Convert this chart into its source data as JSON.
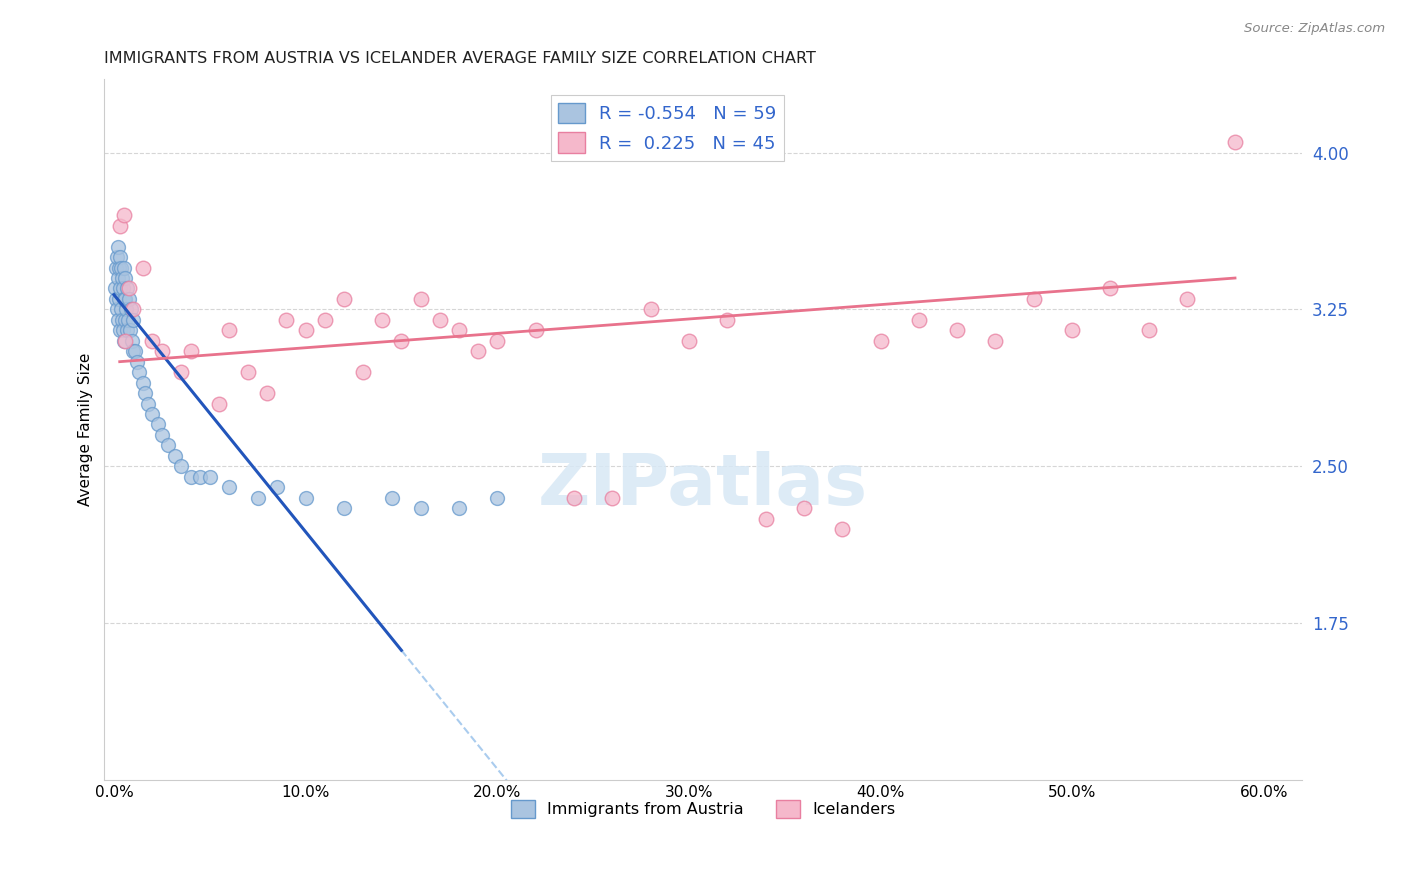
{
  "title": "IMMIGRANTS FROM AUSTRIA VS ICELANDER AVERAGE FAMILY SIZE CORRELATION CHART",
  "source": "Source: ZipAtlas.com",
  "ylabel": "Average Family Size",
  "xlabel_ticks": [
    "0.0%",
    "10.0%",
    "20.0%",
    "30.0%",
    "40.0%",
    "50.0%",
    "60.0%"
  ],
  "xlabel_vals": [
    0,
    10,
    20,
    30,
    40,
    50,
    60
  ],
  "yticks": [
    1.75,
    2.5,
    3.25,
    4.0
  ],
  "ylim": [
    1.0,
    4.35
  ],
  "xlim": [
    -0.5,
    62
  ],
  "r_austria": -0.554,
  "n_austria": 59,
  "r_iceland": 0.225,
  "n_iceland": 45,
  "legend_labels": [
    "Immigrants from Austria",
    "Icelanders"
  ],
  "austria_color": "#aac4e0",
  "austria_edge": "#6699cc",
  "iceland_color": "#f5b8cb",
  "iceland_edge": "#e87fa0",
  "austria_line_color": "#2255bb",
  "austria_line_dash_color": "#aaccee",
  "iceland_line_color": "#e8728c",
  "austria_x": [
    0.05,
    0.1,
    0.1,
    0.15,
    0.15,
    0.2,
    0.2,
    0.2,
    0.25,
    0.25,
    0.3,
    0.3,
    0.3,
    0.35,
    0.35,
    0.4,
    0.4,
    0.45,
    0.45,
    0.5,
    0.5,
    0.5,
    0.55,
    0.6,
    0.6,
    0.65,
    0.7,
    0.7,
    0.75,
    0.8,
    0.85,
    0.9,
    0.95,
    1.0,
    1.0,
    1.1,
    1.2,
    1.3,
    1.5,
    1.6,
    1.8,
    2.0,
    2.3,
    2.5,
    2.8,
    3.2,
    3.5,
    4.0,
    4.5,
    5.0,
    6.0,
    7.5,
    8.5,
    10.0,
    12.0,
    14.5,
    16.0,
    18.0,
    20.0
  ],
  "austria_y": [
    3.35,
    3.45,
    3.3,
    3.5,
    3.25,
    3.55,
    3.4,
    3.2,
    3.45,
    3.3,
    3.5,
    3.35,
    3.15,
    3.45,
    3.25,
    3.4,
    3.2,
    3.35,
    3.15,
    3.45,
    3.3,
    3.1,
    3.3,
    3.4,
    3.2,
    3.25,
    3.35,
    3.15,
    3.2,
    3.3,
    3.15,
    3.25,
    3.1,
    3.2,
    3.05,
    3.05,
    3.0,
    2.95,
    2.9,
    2.85,
    2.8,
    2.75,
    2.7,
    2.65,
    2.6,
    2.55,
    2.5,
    2.45,
    2.45,
    2.45,
    2.4,
    2.35,
    2.4,
    2.35,
    2.3,
    2.35,
    2.3,
    2.3,
    2.35
  ],
  "iceland_x": [
    0.3,
    0.5,
    0.6,
    0.8,
    1.0,
    1.5,
    2.0,
    2.5,
    3.5,
    4.0,
    5.5,
    6.0,
    7.0,
    8.0,
    9.0,
    10.0,
    11.0,
    12.0,
    13.0,
    14.0,
    15.0,
    16.0,
    17.0,
    18.0,
    19.0,
    20.0,
    22.0,
    24.0,
    26.0,
    28.0,
    30.0,
    32.0,
    34.0,
    36.0,
    38.0,
    40.0,
    42.0,
    44.0,
    46.0,
    48.0,
    50.0,
    52.0,
    54.0,
    56.0,
    58.5
  ],
  "iceland_y": [
    3.65,
    3.7,
    3.1,
    3.35,
    3.25,
    3.45,
    3.1,
    3.05,
    2.95,
    3.05,
    2.8,
    3.15,
    2.95,
    2.85,
    3.2,
    3.15,
    3.2,
    3.3,
    2.95,
    3.2,
    3.1,
    3.3,
    3.2,
    3.15,
    3.05,
    3.1,
    3.15,
    2.35,
    2.35,
    3.25,
    3.1,
    3.2,
    2.25,
    2.3,
    2.2,
    3.1,
    3.2,
    3.15,
    3.1,
    3.3,
    3.15,
    3.35,
    3.15,
    3.3,
    4.05
  ],
  "austria_trendline_x0": 0.0,
  "austria_trendline_x1": 15.0,
  "austria_trendline_y0": 3.32,
  "austria_trendline_y1": 1.62,
  "austria_dash_x0": 15.0,
  "austria_dash_x1": 62.0,
  "iceland_trendline_x0": 0.3,
  "iceland_trendline_x1": 58.5,
  "iceland_trendline_y0": 3.0,
  "iceland_trendline_y1": 3.4,
  "figsize": [
    14.06,
    8.92
  ],
  "dpi": 100
}
